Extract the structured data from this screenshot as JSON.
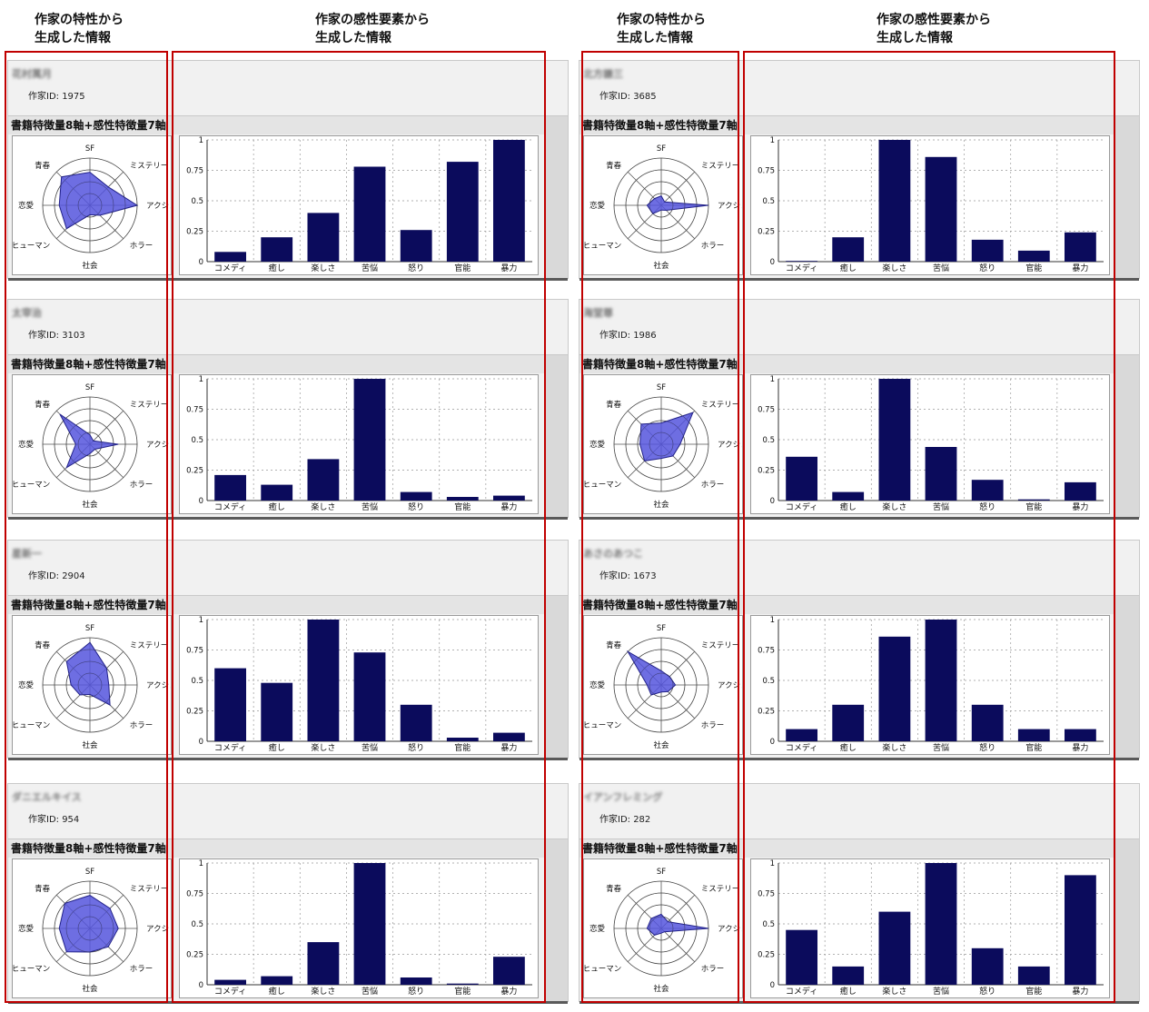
{
  "headers": {
    "left_traits": [
      "作家の特性から",
      "生成した情報"
    ],
    "left_sense": [
      "作家の感性要素から",
      "生成した情報"
    ],
    "right_traits": [
      "作家の特性から",
      "生成した情報"
    ],
    "right_sense": [
      "作家の感性要素から",
      "生成した情報"
    ]
  },
  "chart_title": "書籍特徴量8軸+感性特徴量7軸",
  "radar_axes": [
    "SF",
    "ミステリー",
    "アクション",
    "ホラー",
    "社会",
    "ヒューマン",
    "恋愛",
    "青春"
  ],
  "bar_categories": [
    "コメディ",
    "癒し",
    "楽しさ",
    "苦悩",
    "怒り",
    "官能",
    "暴力"
  ],
  "bar_yticks": [
    "0",
    "0.25",
    "0.5",
    "0.75",
    "1"
  ],
  "colors": {
    "bar": "#0b0b5c",
    "radar_fill": "#5555dd",
    "redbox": "#c00000"
  },
  "authors": [
    {
      "name": "花村萬月",
      "id_label": "作家ID: 1975",
      "radar": [
        0.7,
        0.55,
        1.0,
        0.3,
        0.2,
        0.7,
        0.65,
        0.85
      ],
      "bars": [
        0.08,
        0.2,
        0.4,
        0.78,
        0.26,
        0.82,
        1.0
      ]
    },
    {
      "name": "北方謙三",
      "id_label": "作家ID: 3685",
      "radar": [
        0.2,
        0.1,
        1.0,
        0.15,
        0.1,
        0.25,
        0.3,
        0.2
      ],
      "bars": [
        0.0,
        0.2,
        1.0,
        0.86,
        0.18,
        0.09,
        0.24
      ]
    },
    {
      "name": "太宰治",
      "id_label": "作家ID: 3103",
      "radar": [
        0.2,
        0.1,
        0.6,
        0.15,
        0.2,
        0.7,
        0.3,
        0.9
      ],
      "bars": [
        0.21,
        0.13,
        0.34,
        1.0,
        0.07,
        0.03,
        0.04
      ]
    },
    {
      "name": "海堂尊",
      "id_label": "作家ID: 1986",
      "radar": [
        0.45,
        0.95,
        0.4,
        0.35,
        0.3,
        0.5,
        0.45,
        0.6
      ],
      "bars": [
        0.36,
        0.07,
        1.0,
        0.44,
        0.17,
        0.01,
        0.15
      ]
    },
    {
      "name": "星新一",
      "id_label": "作家ID: 2904",
      "radar": [
        0.9,
        0.5,
        0.4,
        0.6,
        0.2,
        0.3,
        0.4,
        0.7
      ],
      "bars": [
        0.6,
        0.48,
        1.0,
        0.73,
        0.3,
        0.03,
        0.07
      ]
    },
    {
      "name": "あさのあつこ",
      "id_label": "作家ID: 1673",
      "radar": [
        0.3,
        0.25,
        0.3,
        0.2,
        0.15,
        0.3,
        0.3,
        1.0
      ],
      "bars": [
        0.1,
        0.3,
        0.86,
        1.0,
        0.3,
        0.1,
        0.1
      ]
    },
    {
      "name": "ダニエルキイス",
      "id_label": "作家ID: 954",
      "radar": [
        0.7,
        0.6,
        0.6,
        0.55,
        0.5,
        0.7,
        0.65,
        0.75
      ],
      "bars": [
        0.04,
        0.07,
        0.35,
        1.0,
        0.06,
        0.01,
        0.23
      ]
    },
    {
      "name": "イアンフレミング",
      "id_label": "作家ID: 282",
      "radar": [
        0.3,
        0.2,
        1.0,
        0.1,
        0.1,
        0.2,
        0.3,
        0.3
      ],
      "bars": [
        0.45,
        0.15,
        0.6,
        1.0,
        0.3,
        0.15,
        0.9
      ]
    }
  ]
}
